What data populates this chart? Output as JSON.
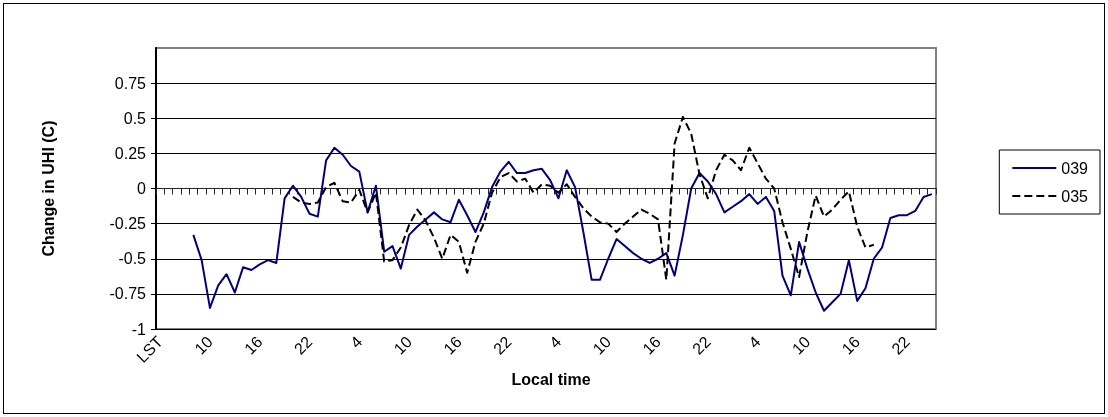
{
  "chart_data": {
    "type": "line",
    "xlabel": "Local time",
    "ylabel": "Change in UHI (C)",
    "categories": [
      "LST",
      null,
      null,
      null,
      null,
      null,
      "10",
      null,
      null,
      null,
      null,
      null,
      "16",
      null,
      null,
      null,
      null,
      null,
      "22",
      null,
      null,
      null,
      null,
      null,
      "4",
      null,
      null,
      null,
      null,
      null,
      "10",
      null,
      null,
      null,
      null,
      null,
      "16",
      null,
      null,
      null,
      null,
      null,
      "22",
      null,
      null,
      null,
      null,
      null,
      "4",
      null,
      null,
      null,
      null,
      null,
      "10",
      null,
      null,
      null,
      null,
      null,
      "16",
      null,
      null,
      null,
      null,
      null,
      "22",
      null,
      null,
      null,
      null,
      null,
      "4",
      null,
      null,
      null,
      null,
      null,
      "10",
      null,
      null,
      null,
      null,
      null,
      "16",
      null,
      null,
      null,
      null,
      null,
      "22",
      null,
      null,
      null
    ],
    "series": [
      {
        "name": "039",
        "color": "#000080",
        "line_style": "solid",
        "values": [
          null,
          null,
          null,
          null,
          -0.33,
          -0.51,
          -0.85,
          -0.69,
          -0.61,
          -0.74,
          -0.56,
          -0.58,
          -0.54,
          -0.51,
          -0.53,
          -0.07,
          0.02,
          -0.06,
          -0.18,
          -0.2,
          0.2,
          0.29,
          0.24,
          0.16,
          0.12,
          -0.17,
          0.02,
          -0.45,
          -0.41,
          -0.57,
          -0.33,
          -0.27,
          -0.22,
          -0.17,
          -0.22,
          -0.24,
          -0.08,
          -0.19,
          -0.31,
          -0.17,
          0.01,
          0.12,
          0.19,
          0.11,
          0.11,
          0.13,
          0.14,
          0.06,
          -0.07,
          0.13,
          0.01,
          -0.31,
          -0.65,
          -0.65,
          -0.5,
          -0.36,
          -0.41,
          -0.46,
          -0.5,
          -0.53,
          -0.5,
          -0.46,
          -0.62,
          -0.33,
          0,
          0.11,
          0.05,
          -0.04,
          -0.17,
          -0.13,
          -0.09,
          -0.04,
          -0.11,
          -0.06,
          -0.16,
          -0.62,
          -0.76,
          -0.38,
          -0.57,
          -0.74,
          -0.87,
          -0.81,
          -0.75,
          -0.51,
          -0.8,
          -0.71,
          -0.5,
          -0.42,
          -0.21,
          -0.19,
          -0.19,
          -0.16,
          -0.06,
          -0.04
        ]
      },
      {
        "name": "035",
        "color": "#000000",
        "line_style": "dashed",
        "values": [
          null,
          null,
          null,
          null,
          null,
          null,
          null,
          null,
          null,
          null,
          null,
          null,
          null,
          null,
          null,
          null,
          -0.06,
          -0.1,
          -0.11,
          -0.1,
          0.01,
          0.04,
          -0.09,
          -0.1,
          -0.01,
          -0.17,
          -0.03,
          -0.52,
          -0.51,
          -0.42,
          -0.26,
          -0.15,
          -0.23,
          -0.35,
          -0.5,
          -0.33,
          -0.38,
          -0.6,
          -0.38,
          -0.25,
          -0.03,
          0.08,
          0.11,
          0.05,
          0.07,
          -0.03,
          0.03,
          0.02,
          -0.03,
          0.03,
          -0.06,
          -0.14,
          -0.2,
          -0.24,
          -0.25,
          -0.31,
          -0.25,
          -0.2,
          -0.15,
          -0.18,
          -0.22,
          -0.65,
          0.32,
          0.51,
          0.39,
          0.1,
          -0.07,
          0.13,
          0.24,
          0.2,
          0.13,
          0.29,
          0.18,
          0.07,
          0,
          -0.24,
          -0.43,
          -0.63,
          -0.31,
          -0.05,
          -0.2,
          -0.15,
          -0.08,
          -0.02,
          -0.27,
          -0.42,
          -0.4,
          null,
          null,
          null,
          null,
          null,
          null,
          null
        ]
      }
    ],
    "ylim": [
      -1,
      1
    ],
    "yticks": [
      -1,
      -0.75,
      -0.5,
      -0.25,
      0,
      0.25,
      0.5,
      0.75
    ],
    "grid": "y",
    "legend": "right",
    "marker": "none"
  }
}
